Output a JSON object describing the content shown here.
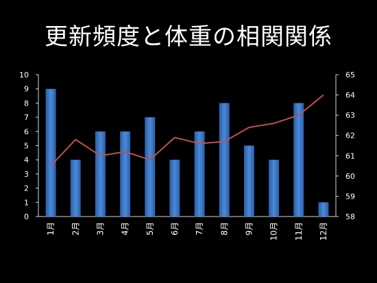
{
  "chart_data": {
    "type": "bar",
    "title": "更新頻度と体重の相関関係",
    "categories": [
      "1月",
      "2月",
      "3月",
      "4月",
      "5月",
      "6月",
      "7月",
      "8月",
      "9月",
      "10月",
      "11月",
      "12月"
    ],
    "series": [
      {
        "values": [
          9,
          4,
          6,
          6,
          7,
          4,
          6,
          8,
          5,
          4,
          8,
          1
        ],
        "axis": "left",
        "type": "bar",
        "color": "#3a78c8"
      },
      {
        "values": [
          60.5,
          61.8,
          61.0,
          61.2,
          60.8,
          61.9,
          61.6,
          61.7,
          62.4,
          62.6,
          63.0,
          64.0
        ],
        "axis": "right",
        "type": "line",
        "color": "#c0504d"
      }
    ],
    "y_left": {
      "min": 0,
      "max": 10,
      "ticks": [
        0,
        1,
        2,
        3,
        4,
        5,
        6,
        7,
        8,
        9,
        10
      ]
    },
    "y_right": {
      "min": 58,
      "max": 65,
      "ticks": [
        58,
        59,
        60,
        61,
        62,
        63,
        64,
        65
      ]
    },
    "grid": false,
    "legend": "none"
  }
}
